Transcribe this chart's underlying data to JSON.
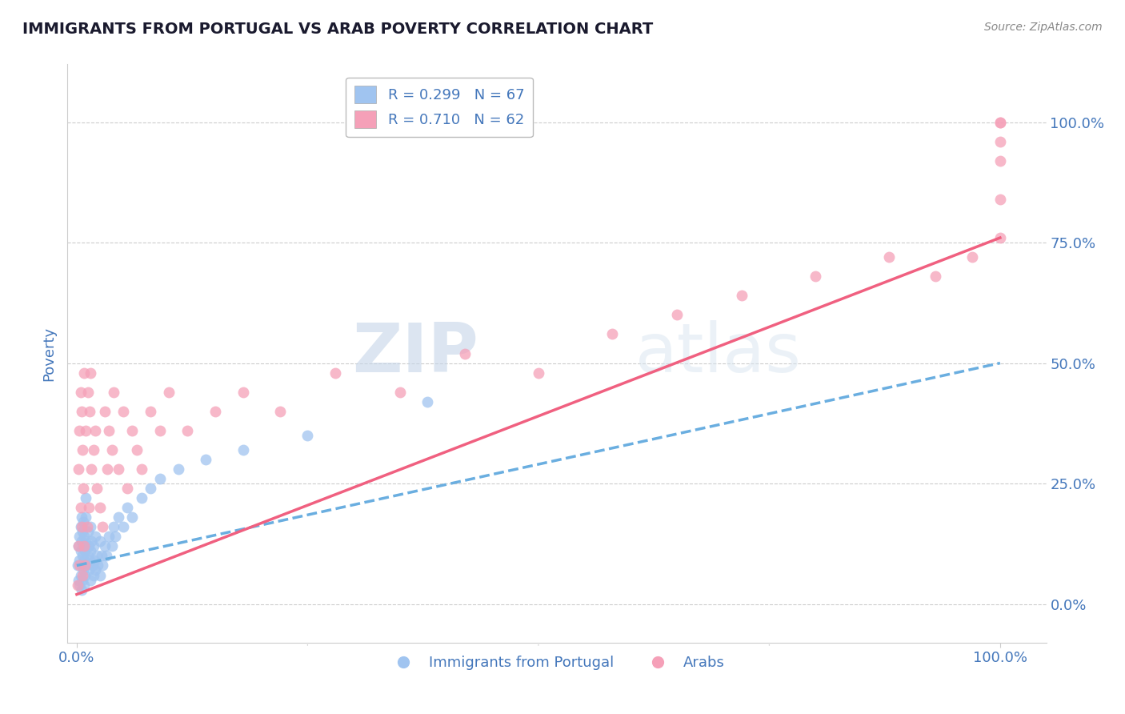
{
  "title": "IMMIGRANTS FROM PORTUGAL VS ARAB POVERTY CORRELATION CHART",
  "source": "Source: ZipAtlas.com",
  "ylabel": "Poverty",
  "xlim": [
    -0.01,
    1.05
  ],
  "ylim": [
    -0.08,
    1.12
  ],
  "ytick_labels": [
    "0.0%",
    "25.0%",
    "50.0%",
    "75.0%",
    "100.0%"
  ],
  "ytick_values": [
    0.0,
    0.25,
    0.5,
    0.75,
    1.0
  ],
  "watermark_zip": "ZIP",
  "watermark_atlas": "atlas",
  "legend_r1": "R = 0.299",
  "legend_n1": "N = 67",
  "legend_r2": "R = 0.710",
  "legend_n2": "N = 62",
  "color_blue": "#a0c4f0",
  "color_pink": "#f5a0b8",
  "line_blue": "#6aaee0",
  "line_pink": "#f06080",
  "background": "#ffffff",
  "grid_color": "#cccccc",
  "title_color": "#1a1a2e",
  "axis_color": "#4477bb",
  "blue_pts_x": [
    0.001,
    0.002,
    0.002,
    0.003,
    0.003,
    0.003,
    0.004,
    0.004,
    0.004,
    0.005,
    0.005,
    0.005,
    0.005,
    0.006,
    0.006,
    0.006,
    0.007,
    0.007,
    0.007,
    0.008,
    0.008,
    0.008,
    0.009,
    0.009,
    0.01,
    0.01,
    0.01,
    0.01,
    0.012,
    0.012,
    0.013,
    0.013,
    0.014,
    0.015,
    0.015,
    0.015,
    0.016,
    0.017,
    0.018,
    0.018,
    0.019,
    0.02,
    0.02,
    0.022,
    0.023,
    0.025,
    0.025,
    0.027,
    0.028,
    0.03,
    0.032,
    0.035,
    0.038,
    0.04,
    0.042,
    0.045,
    0.05,
    0.055,
    0.06,
    0.07,
    0.08,
    0.09,
    0.11,
    0.14,
    0.18,
    0.25,
    0.38
  ],
  "blue_pts_y": [
    0.08,
    0.05,
    0.12,
    0.04,
    0.09,
    0.14,
    0.06,
    0.11,
    0.16,
    0.03,
    0.08,
    0.13,
    0.18,
    0.05,
    0.1,
    0.15,
    0.07,
    0.12,
    0.17,
    0.04,
    0.09,
    0.14,
    0.06,
    0.11,
    0.08,
    0.13,
    0.18,
    0.22,
    0.1,
    0.15,
    0.07,
    0.12,
    0.09,
    0.05,
    0.11,
    0.16,
    0.13,
    0.08,
    0.06,
    0.12,
    0.09,
    0.07,
    0.14,
    0.1,
    0.08,
    0.06,
    0.13,
    0.1,
    0.08,
    0.12,
    0.1,
    0.14,
    0.12,
    0.16,
    0.14,
    0.18,
    0.16,
    0.2,
    0.18,
    0.22,
    0.24,
    0.26,
    0.28,
    0.3,
    0.32,
    0.35,
    0.42
  ],
  "pink_pts_x": [
    0.001,
    0.002,
    0.002,
    0.003,
    0.003,
    0.004,
    0.004,
    0.005,
    0.005,
    0.006,
    0.006,
    0.007,
    0.008,
    0.008,
    0.009,
    0.01,
    0.011,
    0.012,
    0.013,
    0.014,
    0.015,
    0.016,
    0.018,
    0.02,
    0.022,
    0.025,
    0.028,
    0.03,
    0.033,
    0.035,
    0.038,
    0.04,
    0.045,
    0.05,
    0.055,
    0.06,
    0.065,
    0.07,
    0.08,
    0.09,
    0.1,
    0.12,
    0.15,
    0.18,
    0.22,
    0.28,
    0.35,
    0.42,
    0.5,
    0.58,
    0.65,
    0.72,
    0.8,
    0.88,
    0.93,
    0.97,
    1.0,
    1.0,
    1.0,
    1.0,
    1.0,
    1.0
  ],
  "pink_pts_y": [
    0.04,
    0.12,
    0.28,
    0.08,
    0.36,
    0.2,
    0.44,
    0.16,
    0.4,
    0.06,
    0.32,
    0.24,
    0.12,
    0.48,
    0.08,
    0.36,
    0.16,
    0.44,
    0.2,
    0.4,
    0.48,
    0.28,
    0.32,
    0.36,
    0.24,
    0.2,
    0.16,
    0.4,
    0.28,
    0.36,
    0.32,
    0.44,
    0.28,
    0.4,
    0.24,
    0.36,
    0.32,
    0.28,
    0.4,
    0.36,
    0.44,
    0.36,
    0.4,
    0.44,
    0.4,
    0.48,
    0.44,
    0.52,
    0.48,
    0.56,
    0.6,
    0.64,
    0.68,
    0.72,
    0.68,
    0.72,
    0.76,
    0.84,
    0.92,
    0.96,
    1.0,
    1.0
  ],
  "blue_line_x0": 0.0,
  "blue_line_x1": 1.0,
  "blue_line_y0": 0.08,
  "blue_line_y1": 0.5,
  "pink_line_x0": 0.0,
  "pink_line_x1": 1.0,
  "pink_line_y0": 0.02,
  "pink_line_y1": 0.76
}
